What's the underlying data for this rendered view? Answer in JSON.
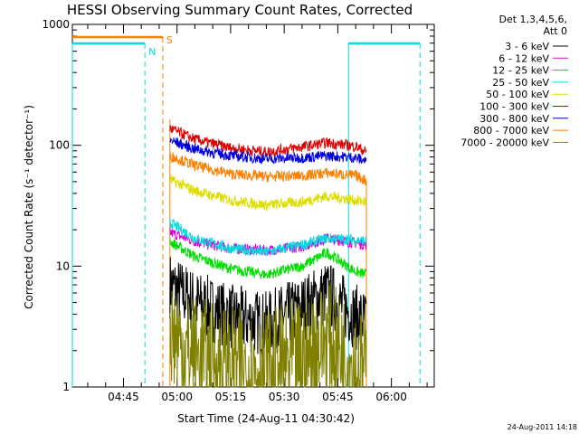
{
  "chart_data": {
    "type": "line",
    "title": "HESSI Observing Summary Count Rates, Corrected",
    "xlabel": "Start Time (24-Aug-11 04:30:42)",
    "ylabel": "Corrected Count Rate (s⁻¹ detector⁻¹)",
    "y_scale": "log",
    "ylim": [
      1,
      1000
    ],
    "x_range": [
      "04:30:42",
      "06:12:00"
    ],
    "x_ticks": [
      "04:45",
      "05:00",
      "05:15",
      "05:30",
      "05:45",
      "06:00"
    ],
    "y_ticks": [
      "1",
      "10",
      "100",
      "1000"
    ],
    "legend_header": [
      "Det 1,3,4,5,6,",
      "Att 0"
    ],
    "legend_placement": "outside-right",
    "footer": "24-Aug-2011 14:18",
    "series": [
      {
        "name": "3 - 6 keV",
        "color": "#000000",
        "x": [
          "04:58",
          "05:05",
          "05:15",
          "05:25",
          "05:35",
          "05:42",
          "05:50",
          "05:53"
        ],
        "values": [
          7,
          5,
          3.8,
          3.3,
          4.5,
          6,
          3.8,
          3.5
        ]
      },
      {
        "name": "6 - 12 keV",
        "color": "#dd00dd",
        "x": [
          "04:58",
          "05:05",
          "05:15",
          "05:25",
          "05:35",
          "05:42",
          "05:50",
          "05:53"
        ],
        "values": [
          19,
          16,
          14,
          13.5,
          14.5,
          17,
          15.5,
          15
        ]
      },
      {
        "name": "12 - 25 keV",
        "color": "#00dd00",
        "x": [
          "04:58",
          "05:05",
          "05:15",
          "05:25",
          "05:35",
          "05:42",
          "05:50",
          "05:53"
        ],
        "values": [
          16,
          12,
          9.5,
          8.5,
          10,
          13,
          9,
          8.5
        ]
      },
      {
        "name": "25 - 50 keV",
        "color": "#00dddd",
        "x": [
          "04:58",
          "05:05",
          "05:15",
          "05:25",
          "05:35",
          "05:42",
          "05:50",
          "05:53"
        ],
        "values": [
          23,
          17,
          14,
          13,
          15,
          17,
          16.5,
          16
        ]
      },
      {
        "name": "50 - 100 keV",
        "color": "#dddd00",
        "x": [
          "04:58",
          "05:05",
          "05:15",
          "05:25",
          "05:35",
          "05:42",
          "05:50",
          "05:53"
        ],
        "values": [
          52,
          42,
          35,
          32,
          34,
          38,
          35,
          34
        ]
      },
      {
        "name": "100 - 300 keV",
        "color": "#dd0000",
        "x": [
          "04:58",
          "05:05",
          "05:15",
          "05:25",
          "05:35",
          "05:42",
          "05:50",
          "05:53"
        ],
        "values": [
          138,
          112,
          95,
          88,
          97,
          105,
          98,
          88
        ]
      },
      {
        "name": "300 - 800 keV",
        "color": "#0000dd",
        "x": [
          "04:58",
          "05:05",
          "05:15",
          "05:25",
          "05:35",
          "05:42",
          "05:50",
          "05:53"
        ],
        "values": [
          110,
          93,
          82,
          77,
          79,
          82,
          79,
          74
        ]
      },
      {
        "name": "800 - 7000 keV",
        "color": "#ff7f00",
        "x": [
          "04:58",
          "05:05",
          "05:15",
          "05:25",
          "05:35",
          "05:42",
          "05:50",
          "05:53"
        ],
        "values": [
          82,
          68,
          58,
          55,
          56,
          59,
          56,
          51
        ]
      },
      {
        "name": "7000 - 20000 keV",
        "color": "#808000",
        "x": [
          "04:58",
          "05:02",
          "05:10",
          "05:20",
          "05:30",
          "05:36",
          "05:42",
          "05:50",
          "05:53"
        ],
        "values": [
          3,
          2,
          1.6,
          1.4,
          1.5,
          1.8,
          2.5,
          1.5,
          1.3
        ]
      }
    ],
    "annotations": [
      {
        "label": "N",
        "color": "#00dddd",
        "x": "04:51",
        "type": "night-marker"
      },
      {
        "label": "S",
        "color": "#ff7f00",
        "x": "04:56",
        "type": "saa-marker"
      }
    ],
    "night_flag_color": "#00dddd",
    "saa_flag_color": "#ff7f00"
  }
}
